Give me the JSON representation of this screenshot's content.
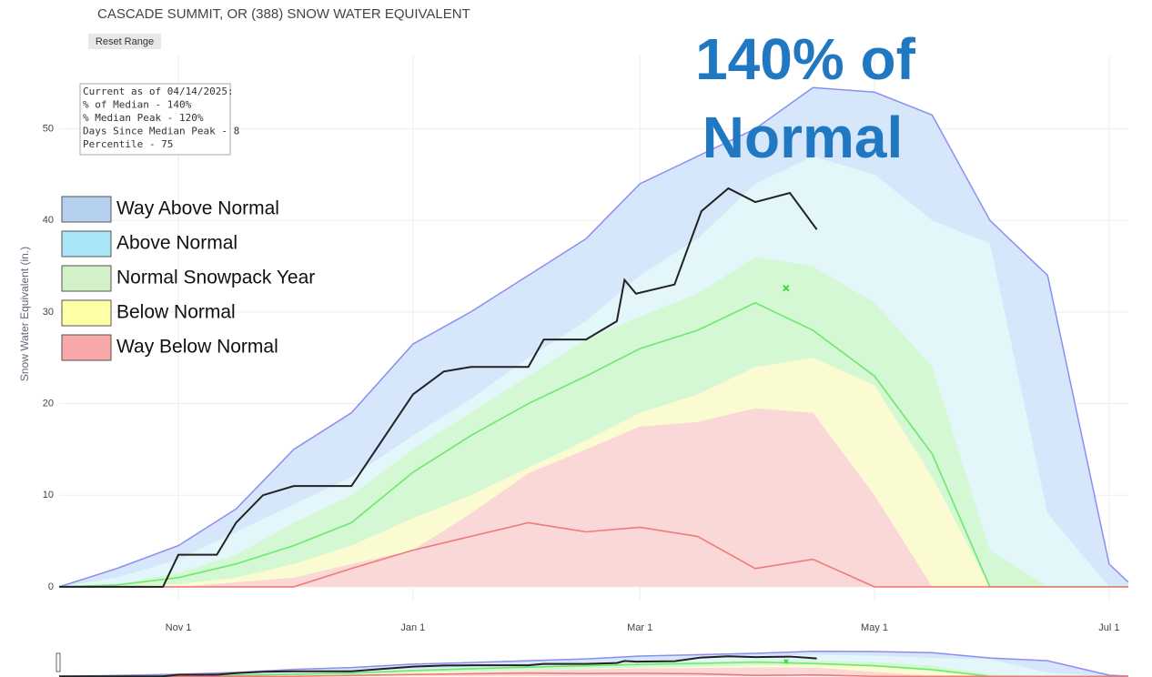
{
  "chart_data": {
    "type": "area",
    "title": "CASCADE SUMMIT, OR (388) SNOW WATER EQUIVALENT",
    "button": "Reset Range",
    "info": [
      "Current as of 04/14/2025:",
      "% of Median - 140%",
      "% Median Peak - 120%",
      "Days Since Median Peak - 8",
      "Percentile - 75"
    ],
    "annotation": [
      "140% of",
      "Normal"
    ],
    "ylabel": "Snow Water Equivalent (in.)",
    "xlim": [
      0,
      278
    ],
    "xticks": [
      {
        "value": 31,
        "label": "Nov 1"
      },
      {
        "value": 92,
        "label": "Jan 1"
      },
      {
        "value": 151,
        "label": "Mar 1"
      },
      {
        "value": 212,
        "label": "May 1"
      },
      {
        "value": 273,
        "label": "Jul 1"
      }
    ],
    "ylim": [
      -1.5,
      58
    ],
    "yticks": [
      0,
      10,
      20,
      30,
      40,
      50
    ],
    "grid": true,
    "x": [
      0,
      15,
      31,
      46,
      61,
      76,
      92,
      107,
      122,
      137,
      151,
      166,
      181,
      196,
      212,
      227,
      242,
      257,
      273,
      278
    ],
    "series": [
      {
        "name": "Way Above Normal",
        "color": "#d6e6fb",
        "legend_color": "#b4d0ee",
        "line_color": "#8d8df0",
        "values": [
          0,
          2,
          4.5,
          8.5,
          15,
          19,
          26.5,
          30,
          34,
          38,
          44,
          47,
          50,
          54.5,
          54,
          51.5,
          40,
          34,
          2.5,
          0.5
        ]
      },
      {
        "name": "Above Normal",
        "color": "#e3f7fb",
        "legend_color": "#a8e6f8",
        "values": [
          0,
          1,
          3,
          6,
          9,
          12,
          16.5,
          20.5,
          25,
          29,
          34,
          38,
          44,
          47,
          45,
          40,
          37.5,
          8,
          0,
          0
        ]
      },
      {
        "name": "Normal Snowpack Year",
        "color": "#d4f7d4",
        "legend_color": "#d4f0c8",
        "values": [
          0,
          0.3,
          1.5,
          3.5,
          7,
          10,
          15,
          19,
          23,
          27,
          29.5,
          32,
          36,
          35,
          31,
          24,
          4,
          0,
          0,
          0
        ]
      },
      {
        "name": "Below Normal",
        "color": "#fbfbd2",
        "legend_color": "#ffffa8",
        "values": [
          0,
          0,
          0.3,
          1,
          2.5,
          4.5,
          7.5,
          10,
          13,
          16,
          19,
          21,
          24,
          25,
          22,
          12,
          0,
          0,
          0,
          0
        ]
      },
      {
        "name": "Way Below Normal",
        "color": "#fbd8d8",
        "legend_color": "#f8a8a8",
        "values": [
          0,
          0,
          0,
          0.5,
          1,
          2.5,
          4,
          8,
          12.4,
          15,
          17.5,
          18,
          19.5,
          19,
          10,
          0,
          0,
          0,
          0,
          0
        ]
      }
    ],
    "lines": [
      {
        "color": "#6ee86e",
        "values": [
          0,
          0.2,
          1,
          2.5,
          4.5,
          7,
          12.5,
          16.5,
          20,
          23,
          26,
          28,
          31,
          28,
          23,
          14.5,
          0,
          0,
          0,
          0
        ]
      },
      {
        "color": "#f07a7a",
        "values": [
          0,
          0,
          0,
          0,
          0,
          2,
          4,
          5.5,
          7,
          6,
          6.5,
          5.5,
          2,
          3,
          0,
          0,
          0,
          0,
          0,
          0
        ]
      },
      {
        "color": "#222222",
        "x": [
          0,
          27,
          31,
          41,
          46,
          53,
          61,
          76,
          84,
          92,
          100,
          107,
          122,
          126,
          137,
          145,
          147,
          150,
          160,
          167,
          174,
          181,
          190,
          197
        ],
        "values": [
          0,
          0,
          3.5,
          3.5,
          7,
          10,
          11,
          11,
          16,
          21,
          23.5,
          24,
          24,
          27,
          27,
          29,
          33.5,
          32,
          33,
          41,
          43.5,
          42,
          43,
          39
        ]
      }
    ],
    "marker": {
      "x": 189,
      "value": 32.6,
      "color": "#3ddc3d"
    }
  }
}
